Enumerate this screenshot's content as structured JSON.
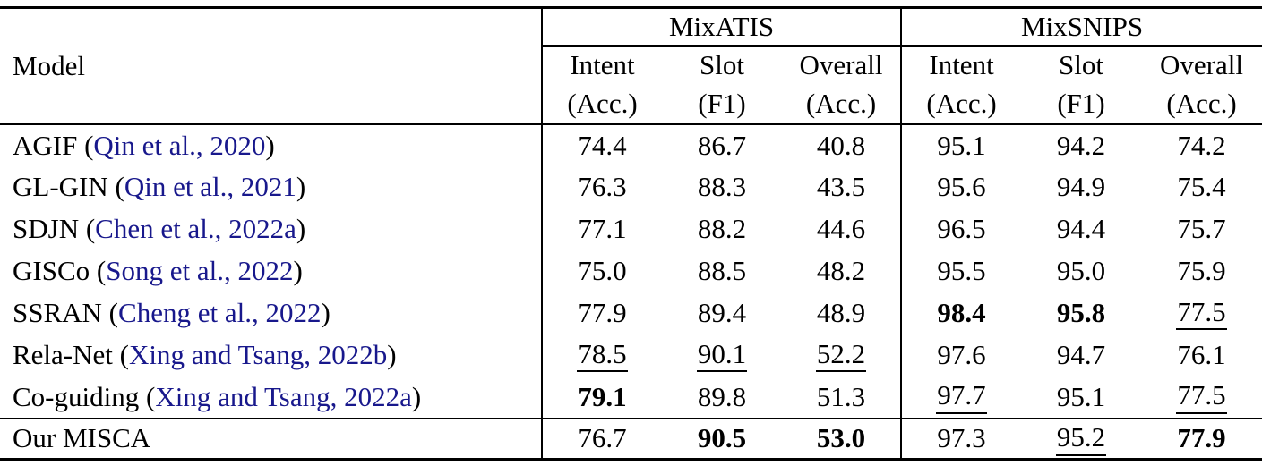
{
  "colors": {
    "citation": "#18188C",
    "text": "#000000",
    "border": "#000000"
  },
  "table": {
    "model_header": "Model",
    "groups": [
      {
        "label": "MixATIS",
        "columns": [
          {
            "line1": "Intent",
            "line2": "(Acc.)"
          },
          {
            "line1": "Slot",
            "line2": "(F1)"
          },
          {
            "line1": "Overall",
            "line2": "(Acc.)"
          }
        ]
      },
      {
        "label": "MixSNIPS",
        "columns": [
          {
            "line1": "Intent",
            "line2": "(Acc.)"
          },
          {
            "line1": "Slot",
            "line2": "(F1)"
          },
          {
            "line1": "Overall",
            "line2": "(Acc.)"
          }
        ]
      }
    ],
    "rows": [
      {
        "model": "AGIF",
        "cite": "Qin et al., 2020",
        "ours": false,
        "cells": [
          {
            "v": "74.4",
            "s": "n"
          },
          {
            "v": "86.7",
            "s": "n"
          },
          {
            "v": "40.8",
            "s": "n"
          },
          {
            "v": "95.1",
            "s": "n"
          },
          {
            "v": "94.2",
            "s": "n"
          },
          {
            "v": "74.2",
            "s": "n"
          }
        ]
      },
      {
        "model": "GL-GIN",
        "cite": "Qin et al., 2021",
        "ours": false,
        "cells": [
          {
            "v": "76.3",
            "s": "n"
          },
          {
            "v": "88.3",
            "s": "n"
          },
          {
            "v": "43.5",
            "s": "n"
          },
          {
            "v": "95.6",
            "s": "n"
          },
          {
            "v": "94.9",
            "s": "n"
          },
          {
            "v": "75.4",
            "s": "n"
          }
        ]
      },
      {
        "model": "SDJN",
        "cite": "Chen et al., 2022a",
        "ours": false,
        "cells": [
          {
            "v": "77.1",
            "s": "n"
          },
          {
            "v": "88.2",
            "s": "n"
          },
          {
            "v": "44.6",
            "s": "n"
          },
          {
            "v": "96.5",
            "s": "n"
          },
          {
            "v": "94.4",
            "s": "n"
          },
          {
            "v": "75.7",
            "s": "n"
          }
        ]
      },
      {
        "model": "GISCo",
        "cite": "Song et al., 2022",
        "ours": false,
        "cells": [
          {
            "v": "75.0",
            "s": "n"
          },
          {
            "v": "88.5",
            "s": "n"
          },
          {
            "v": "48.2",
            "s": "n"
          },
          {
            "v": "95.5",
            "s": "n"
          },
          {
            "v": "95.0",
            "s": "n"
          },
          {
            "v": "75.9",
            "s": "n"
          }
        ]
      },
      {
        "model": "SSRAN",
        "cite": "Cheng et al., 2022",
        "ours": false,
        "cells": [
          {
            "v": "77.9",
            "s": "n"
          },
          {
            "v": "89.4",
            "s": "n"
          },
          {
            "v": "48.9",
            "s": "n"
          },
          {
            "v": "98.4",
            "s": "b"
          },
          {
            "v": "95.8",
            "s": "b"
          },
          {
            "v": "77.5",
            "s": "u"
          }
        ]
      },
      {
        "model": "Rela-Net",
        "cite": "Xing and Tsang, 2022b",
        "ours": false,
        "cells": [
          {
            "v": "78.5",
            "s": "u"
          },
          {
            "v": "90.1",
            "s": "u"
          },
          {
            "v": "52.2",
            "s": "u"
          },
          {
            "v": "97.6",
            "s": "n"
          },
          {
            "v": "94.7",
            "s": "n"
          },
          {
            "v": "76.1",
            "s": "n"
          }
        ]
      },
      {
        "model": "Co-guiding",
        "cite": "Xing and Tsang, 2022a",
        "ours": false,
        "cells": [
          {
            "v": "79.1",
            "s": "b"
          },
          {
            "v": "89.8",
            "s": "n"
          },
          {
            "v": "51.3",
            "s": "n"
          },
          {
            "v": "97.7",
            "s": "u"
          },
          {
            "v": "95.1",
            "s": "n"
          },
          {
            "v": "77.5",
            "s": "u"
          }
        ]
      },
      {
        "model": "Our MISCA",
        "cite": "",
        "ours": true,
        "cells": [
          {
            "v": "76.7",
            "s": "n"
          },
          {
            "v": "90.5",
            "s": "b"
          },
          {
            "v": "53.0",
            "s": "b"
          },
          {
            "v": "97.3",
            "s": "n"
          },
          {
            "v": "95.2",
            "s": "u"
          },
          {
            "v": "77.9",
            "s": "b"
          }
        ]
      }
    ]
  }
}
